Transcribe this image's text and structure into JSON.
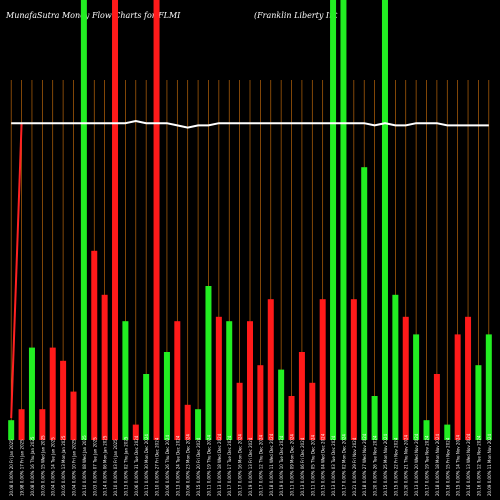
{
  "header": {
    "left": "MunafaSutra  Money  Flow  Charts for FLMI",
    "right": "(Franklin  Liberty Int"
  },
  "colors": {
    "background": "#000000",
    "gridline": "#b8650b",
    "up": "#22ee22",
    "down": "#ff1a1a",
    "flow_line": "#ffffff",
    "mfi_line": "#ff2222",
    "label": "#ffffff"
  },
  "chart_data": {
    "type": "bar",
    "ylim": [
      0,
      100
    ],
    "grid": true,
    "categories": [
      "20 Fri Jan 2025",
      "17 Fri Jan 2025",
      "16 Thu Jan 2025",
      "15 Wed Jan 2025",
      "14 Tue Jan 2025",
      "13 Mon Jan 2025",
      "10 Fri Jan 2025",
      "08 Wed Jan 2025",
      "07 Tue Jan 2025",
      "06 Mon Jan 2025",
      "03 Fri Jan 2025",
      "02 Thu Jan 2025",
      "31 Tue Dec 2024",
      "30 Mon Dec 2024",
      "27 Fri Dec 2024",
      "26 Thu Dec 2024",
      "24 Tue Dec 2024",
      "23 Mon Dec 2024",
      "20 Fri Dec 2024",
      "19 Thu Dec 2024",
      "18 Wed Dec 2024",
      "17 Tue Dec 2024",
      "16 Mon Dec 2024",
      "13 Fri Dec 2024",
      "12 Thu Dec 2024",
      "11 Wed Dec 2024",
      "10 Tue Dec 2024",
      "09 Mon Dec 2024",
      "06 Fri Dec 2024",
      "05 Thu Dec 2024",
      "04 Wed Dec 2024",
      "03 Tue Dec 2024",
      "02 Mon Dec 2024",
      "29 Fri Nov 2024",
      "27 Wed Nov 2024",
      "26 Tue Nov 2024",
      "25 Mon Nov 2024",
      "22 Fri Nov 2024",
      "21 Thu Nov 2024",
      "20 Wed Nov 2024",
      "19 Tue Nov 2024",
      "18 Mon Nov 2024",
      "15 Fri Nov 2024",
      "14 Thu Nov 2024",
      "13 Wed Nov 2024",
      "12 Tue Nov 2024",
      "11 Mon Nov 2024"
    ],
    "labels": [
      "20.08 0.00%",
      "19.98 0.00%",
      "20.08 0.00%",
      "20.05 0.00%",
      "20.04 0.00%",
      "20.05 0.00%",
      "20.04 0.00%",
      "20.10 0.00%",
      "20.03 0.00%",
      "20.14 0.00%",
      "20.10 0.00%",
      "20.13 0.00%",
      "20.06 0.00%",
      "20.11 0.00%",
      "20.10 0.00%",
      "20.06 0.00%",
      "20.13 0.00%",
      "20.06 0.00%",
      "20.15 0.00%",
      "20.11 0.00%",
      "20.13 0.00%",
      "20.17 0.00%",
      "20.17 0.00%",
      "20.19 0.00%",
      "20.17 0.00%",
      "20.18 0.00%",
      "20.19 0.00%",
      "20.11 0.00%",
      "20.13 0.00%",
      "20.11 0.00%",
      "20.15 0.00%",
      "20.13 0.00%",
      "20.17 0.00%",
      "20.21 0.00%",
      "20.18 0.00%",
      "20.20 0.00%",
      "20.15 0.00%",
      "20.15 0.00%",
      "20.20 0.00%",
      "20.13 0.00%",
      "20.17 0.00%",
      "20.18 0.00%",
      "20.16 0.00%",
      "20.15 0.00%",
      "20.16 0.00%",
      "20.16 0.00%",
      "20.09 0.00%"
    ],
    "directions": [
      "up",
      "down",
      "up",
      "down",
      "down",
      "down",
      "down",
      "up",
      "down",
      "down",
      "down",
      "up",
      "down",
      "up",
      "down",
      "up",
      "down",
      "down",
      "up",
      "up",
      "down",
      "up",
      "down",
      "down",
      "down",
      "down",
      "up",
      "down",
      "down",
      "down",
      "down",
      "up",
      "up",
      "down",
      "up",
      "up",
      "up",
      "up",
      "down",
      "up",
      "up",
      "down",
      "up",
      "down",
      "down",
      "up",
      "up"
    ],
    "values": [
      4.5,
      7,
      21,
      7,
      21,
      18,
      11,
      100,
      43,
      33,
      100,
      27,
      3.5,
      15,
      100,
      20,
      27,
      8,
      7,
      35,
      28,
      27,
      13,
      27,
      17,
      32,
      16,
      10,
      20,
      13,
      32,
      100,
      100,
      32,
      62,
      10,
      100,
      33,
      28,
      24,
      4.5,
      15,
      3.5,
      24,
      28,
      17,
      24
    ],
    "mfi_line": [
      5,
      72,
      72,
      72,
      72,
      72,
      72,
      72,
      72,
      72,
      72,
      72,
      72,
      72,
      72,
      72,
      72,
      72,
      72,
      72,
      72,
      72,
      72,
      72,
      72,
      72,
      72,
      72,
      72,
      72,
      72,
      72,
      72,
      72,
      72,
      72,
      72,
      72,
      72,
      72,
      72,
      72,
      72,
      72,
      72,
      72,
      72
    ],
    "flow_line": [
      72,
      72,
      72,
      72,
      72,
      72,
      72,
      72,
      72,
      72,
      72,
      72,
      72.5,
      72,
      72,
      72,
      71.5,
      71,
      71.5,
      71.5,
      72,
      72,
      72,
      72,
      72,
      72,
      72,
      72,
      72,
      72,
      72,
      72,
      72,
      72,
      72,
      71.5,
      72,
      71.5,
      71.5,
      72,
      72,
      72,
      71.5,
      71.5,
      71.5,
      71.5,
      71.5
    ]
  }
}
